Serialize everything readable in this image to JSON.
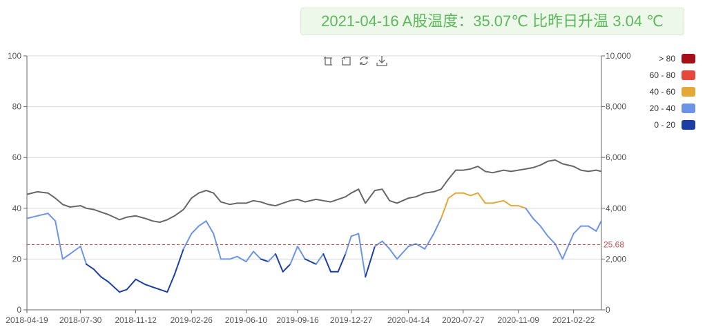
{
  "header": {
    "date": "2021-04-16",
    "label": " A股温度：",
    "temperature": "35.07",
    "unit": "℃",
    "change_label": " 比昨日升温 ",
    "change_value": "3.04",
    "change_unit": " ℃"
  },
  "toolbox": {
    "zoom": "zoom-icon",
    "zoom_reset": "zoom-reset-icon",
    "restore": "restore-icon",
    "save": "save-icon"
  },
  "colors": {
    "index_line": "#666666",
    "grid": "#d7d7d7",
    "axis": "#666666",
    "mark_line": "#c0504d"
  },
  "chart_data": {
    "type": "line",
    "x_tick_labels": [
      "2018-04-19",
      "2018-07-30",
      "2018-11-12",
      "2019-02-26",
      "2019-06-10",
      "2019-09-16",
      "2019-12-27",
      "2020-04-14",
      "2020-07-27",
      "2020-11-09",
      "2021-02-22"
    ],
    "x_range": [
      "2018-04-19",
      "2021-04-16"
    ],
    "y_left": {
      "min": 0,
      "max": 100,
      "ticks": [
        "0",
        "20",
        "40",
        "60",
        "80",
        "100"
      ]
    },
    "y_right": {
      "min": 0,
      "max": 10000,
      "ticks": [
        "0",
        "2,000",
        "4,000",
        "6,000",
        "8,000",
        "10,000"
      ]
    },
    "mark_line": {
      "value": 25.68,
      "label": "25.68"
    },
    "legend": {
      "placement": "top-right",
      "pieces": [
        {
          "label": "> 80",
          "min": 80,
          "max": 100,
          "color": "#a50f15"
        },
        {
          "label": "60 - 80",
          "min": 60,
          "max": 80,
          "color": "#e8473c"
        },
        {
          "label": "40 - 60",
          "min": 40,
          "max": 60,
          "color": "#e5a735"
        },
        {
          "label": "20 - 40",
          "min": 20,
          "max": 40,
          "color": "#6b93e6"
        },
        {
          "label": "0 - 20",
          "min": 0,
          "max": 20,
          "color": "#1b3ea3"
        }
      ]
    },
    "series": [
      {
        "axis": "left",
        "x": [
          "2018-04-19",
          "2018-05-09",
          "2018-05-29",
          "2018-06-12",
          "2018-06-26",
          "2018-07-10",
          "2018-07-30",
          "2018-08-10",
          "2018-08-24",
          "2018-09-07",
          "2018-09-21",
          "2018-10-12",
          "2018-10-26",
          "2018-11-12",
          "2018-11-30",
          "2018-12-14",
          "2018-12-28",
          "2019-01-11",
          "2019-01-25",
          "2019-02-11",
          "2019-02-26",
          "2019-03-12",
          "2019-03-26",
          "2019-04-09",
          "2019-04-23",
          "2019-05-10",
          "2019-05-24",
          "2019-06-10",
          "2019-06-24",
          "2019-07-08",
          "2019-07-22",
          "2019-08-05",
          "2019-08-19",
          "2019-09-02",
          "2019-09-16",
          "2019-09-30",
          "2019-10-21",
          "2019-11-04",
          "2019-11-18",
          "2019-12-02",
          "2019-12-16",
          "2019-12-27",
          "2020-01-10",
          "2020-01-23",
          "2020-02-10",
          "2020-02-24",
          "2020-03-09",
          "2020-03-23",
          "2020-04-14",
          "2020-04-28",
          "2020-05-15",
          "2020-06-01",
          "2020-06-15",
          "2020-06-29",
          "2020-07-13",
          "2020-07-27",
          "2020-08-10",
          "2020-08-24",
          "2020-09-07",
          "2020-09-21",
          "2020-10-12",
          "2020-10-26",
          "2020-11-09",
          "2020-11-23",
          "2020-12-07",
          "2020-12-21",
          "2021-01-04",
          "2021-01-18",
          "2021-02-01",
          "2021-02-22",
          "2021-03-08",
          "2021-03-22",
          "2021-04-06",
          "2021-04-16"
        ],
        "values": [
          36,
          37,
          38,
          35,
          20,
          22,
          25,
          18,
          16,
          13,
          11,
          7,
          8,
          12,
          10,
          9,
          8,
          7,
          14,
          24,
          30,
          33,
          35,
          30,
          20,
          20,
          21,
          19,
          23,
          20,
          19,
          22,
          15,
          18,
          25,
          20,
          18,
          22,
          15,
          15,
          22,
          29,
          30,
          13,
          25,
          27,
          24,
          20,
          25,
          26,
          24,
          30,
          36,
          44,
          46,
          46,
          45,
          46,
          42,
          42,
          43,
          41,
          41,
          40,
          36,
          33,
          29,
          26,
          20,
          30,
          33,
          33,
          31,
          35.07
        ]
      },
      {
        "axis": "right",
        "x": [
          "2018-04-19",
          "2018-05-09",
          "2018-05-29",
          "2018-06-12",
          "2018-06-26",
          "2018-07-10",
          "2018-07-30",
          "2018-08-10",
          "2018-08-24",
          "2018-09-07",
          "2018-09-21",
          "2018-10-12",
          "2018-10-26",
          "2018-11-12",
          "2018-11-30",
          "2018-12-14",
          "2018-12-28",
          "2019-01-11",
          "2019-01-25",
          "2019-02-11",
          "2019-02-26",
          "2019-03-12",
          "2019-03-26",
          "2019-04-09",
          "2019-04-23",
          "2019-05-10",
          "2019-05-24",
          "2019-06-10",
          "2019-06-24",
          "2019-07-08",
          "2019-07-22",
          "2019-08-05",
          "2019-08-19",
          "2019-09-02",
          "2019-09-16",
          "2019-09-30",
          "2019-10-21",
          "2019-11-04",
          "2019-11-18",
          "2019-12-02",
          "2019-12-16",
          "2019-12-27",
          "2020-01-10",
          "2020-01-23",
          "2020-02-10",
          "2020-02-24",
          "2020-03-09",
          "2020-03-23",
          "2020-04-14",
          "2020-04-28",
          "2020-05-15",
          "2020-06-01",
          "2020-06-15",
          "2020-06-29",
          "2020-07-13",
          "2020-07-27",
          "2020-08-10",
          "2020-08-24",
          "2020-09-07",
          "2020-09-21",
          "2020-10-12",
          "2020-10-26",
          "2020-11-09",
          "2020-11-23",
          "2020-12-07",
          "2020-12-21",
          "2021-01-04",
          "2021-01-18",
          "2021-02-01",
          "2021-02-22",
          "2021-03-08",
          "2021-03-22",
          "2021-04-06",
          "2021-04-16"
        ],
        "values": [
          4550,
          4650,
          4600,
          4400,
          4150,
          4050,
          4100,
          4000,
          3950,
          3850,
          3750,
          3550,
          3650,
          3700,
          3600,
          3500,
          3450,
          3550,
          3700,
          3950,
          4400,
          4600,
          4700,
          4600,
          4250,
          4150,
          4200,
          4200,
          4300,
          4250,
          4150,
          4100,
          4200,
          4300,
          4350,
          4250,
          4350,
          4300,
          4250,
          4350,
          4450,
          4600,
          4750,
          4200,
          4700,
          4750,
          4300,
          4200,
          4400,
          4450,
          4600,
          4650,
          4750,
          5150,
          5500,
          5500,
          5550,
          5650,
          5450,
          5400,
          5500,
          5450,
          5500,
          5550,
          5600,
          5700,
          5850,
          5900,
          5750,
          5650,
          5500,
          5450,
          5500,
          5450
        ]
      }
    ]
  }
}
